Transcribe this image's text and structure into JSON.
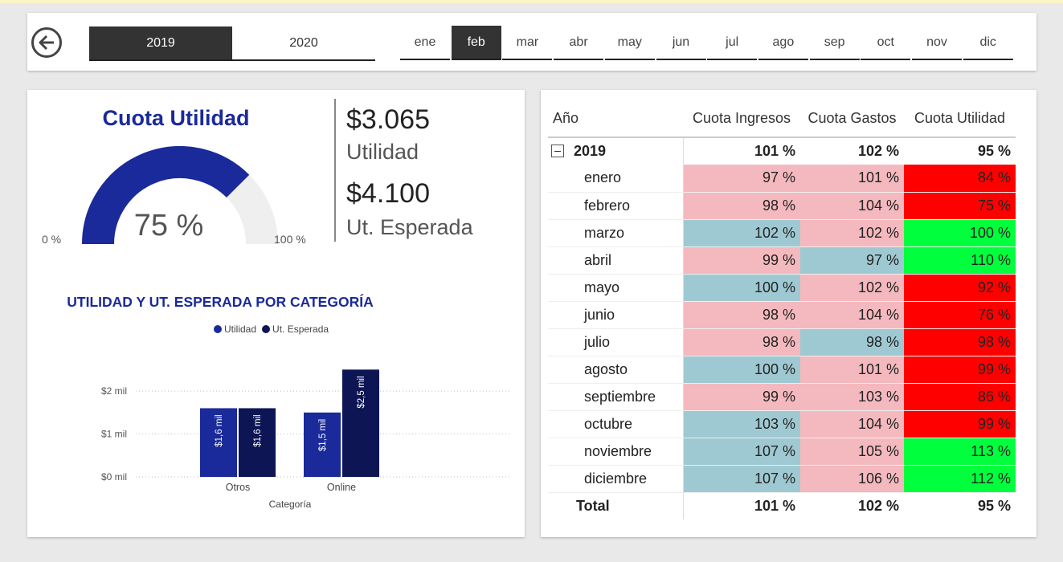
{
  "filters": {
    "years": [
      {
        "label": "2019",
        "active": true
      },
      {
        "label": "2020",
        "active": false
      }
    ],
    "months": [
      {
        "label": "ene",
        "active": false
      },
      {
        "label": "feb",
        "active": true
      },
      {
        "label": "mar",
        "active": false
      },
      {
        "label": "abr",
        "active": false
      },
      {
        "label": "may",
        "active": false
      },
      {
        "label": "jun",
        "active": false
      },
      {
        "label": "jul",
        "active": false
      },
      {
        "label": "ago",
        "active": false
      },
      {
        "label": "sep",
        "active": false
      },
      {
        "label": "oct",
        "active": false
      },
      {
        "label": "nov",
        "active": false
      },
      {
        "label": "dic",
        "active": false
      }
    ]
  },
  "gauge": {
    "title": "Cuota Utilidad",
    "value_label": "75 %",
    "value": 0.75,
    "min_label": "0 %",
    "max_label": "100 %",
    "fill_color": "#1a2a9a",
    "track_color": "#f0efef"
  },
  "kpis": [
    {
      "value": "$3.065",
      "label": "Utilidad"
    },
    {
      "value": "$4.100",
      "label": "Ut. Esperada"
    }
  ],
  "chart_data": {
    "type": "bar",
    "title": "UTILIDAD Y UT. ESPERADA POR CATEGORÍA",
    "xlabel": "Categoría",
    "ylabel": "",
    "categories": [
      "Otros",
      "Online"
    ],
    "series": [
      {
        "name": "Utilidad",
        "values": [
          1.6,
          1.5
        ],
        "labels": [
          "$1,6 mil",
          "$1,5 mil"
        ],
        "color": "#1a2a9a"
      },
      {
        "name": "Ut. Esperada",
        "values": [
          1.6,
          2.5
        ],
        "labels": [
          "$1,6 mil",
          "$2,5 mil"
        ],
        "color": "#0d1555"
      }
    ],
    "yticks": [
      {
        "value": 0,
        "label": "$0 mil"
      },
      {
        "value": 1,
        "label": "$1 mil"
      },
      {
        "value": 2,
        "label": "$2 mil"
      }
    ],
    "ylim": [
      0,
      2.6
    ],
    "grid": true,
    "legend_position": "top"
  },
  "table": {
    "headers": [
      "Año",
      "Cuota Ingresos",
      "Cuota Gastos",
      "Cuota Utilidad"
    ],
    "year_row": {
      "label": "2019",
      "values": [
        "101 %",
        "102 %",
        "95 %"
      ]
    },
    "rows": [
      {
        "label": "enero",
        "values": [
          "97 %",
          "101 %",
          "84 %"
        ],
        "colors": [
          "#f4b9be",
          "#f4b9be",
          "#ff0000"
        ]
      },
      {
        "label": "febrero",
        "values": [
          "98 %",
          "104 %",
          "75 %"
        ],
        "colors": [
          "#f4b9be",
          "#f4b9be",
          "#ff0000"
        ]
      },
      {
        "label": "marzo",
        "values": [
          "102 %",
          "102 %",
          "100 %"
        ],
        "colors": [
          "#9fc9d2",
          "#f4b9be",
          "#00ff3c"
        ]
      },
      {
        "label": "abril",
        "values": [
          "99 %",
          "97 %",
          "110 %"
        ],
        "colors": [
          "#f4b9be",
          "#9fc9d2",
          "#00ff3c"
        ]
      },
      {
        "label": "mayo",
        "values": [
          "100 %",
          "102 %",
          "92 %"
        ],
        "colors": [
          "#9fc9d2",
          "#f4b9be",
          "#ff0000"
        ]
      },
      {
        "label": "junio",
        "values": [
          "98 %",
          "104 %",
          "76 %"
        ],
        "colors": [
          "#f4b9be",
          "#f4b9be",
          "#ff0000"
        ]
      },
      {
        "label": "julio",
        "values": [
          "98 %",
          "98 %",
          "98 %"
        ],
        "colors": [
          "#f4b9be",
          "#9fc9d2",
          "#ff0000"
        ]
      },
      {
        "label": "agosto",
        "values": [
          "100 %",
          "101 %",
          "99 %"
        ],
        "colors": [
          "#9fc9d2",
          "#f4b9be",
          "#ff0000"
        ]
      },
      {
        "label": "septiembre",
        "values": [
          "99 %",
          "103 %",
          "86 %"
        ],
        "colors": [
          "#f4b9be",
          "#f4b9be",
          "#ff0000"
        ]
      },
      {
        "label": "octubre",
        "values": [
          "103 %",
          "104 %",
          "99 %"
        ],
        "colors": [
          "#9fc9d2",
          "#f4b9be",
          "#ff0000"
        ]
      },
      {
        "label": "noviembre",
        "values": [
          "107 %",
          "105 %",
          "113 %"
        ],
        "colors": [
          "#9fc9d2",
          "#f4b9be",
          "#00ff3c"
        ]
      },
      {
        "label": "diciembre",
        "values": [
          "107 %",
          "106 %",
          "112 %"
        ],
        "colors": [
          "#9fc9d2",
          "#f4b9be",
          "#00ff3c"
        ]
      }
    ],
    "total_row": {
      "label": "Total",
      "values": [
        "101 %",
        "102 %",
        "95 %"
      ]
    }
  },
  "icons": {
    "back": "back-arrow-circle-icon",
    "expand": "collapse-minus-icon"
  }
}
